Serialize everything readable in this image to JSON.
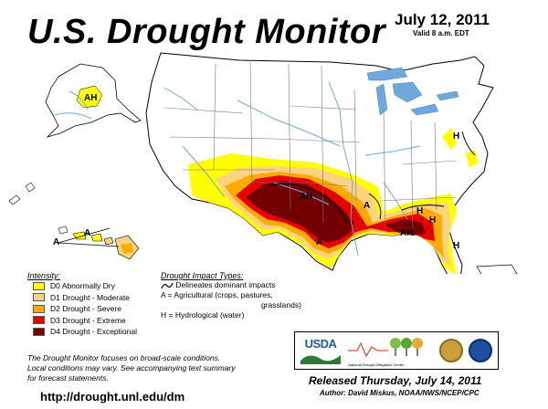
{
  "header": {
    "title": "U.S. Drought Monitor",
    "date": "July 12, 2011",
    "valid": "Valid 8 a.m. EDT"
  },
  "legend": {
    "intensity_title": "Intensity:",
    "items": [
      {
        "label": "D0 Abnormally Dry",
        "color": "#ffff00"
      },
      {
        "label": "D1 Drought - Moderate",
        "color": "#fcd37f"
      },
      {
        "label": "D2 Drought - Severe",
        "color": "#ffaa00"
      },
      {
        "label": "D3 Drought - Extreme",
        "color": "#e60000"
      },
      {
        "label": "D4 Drought - Exceptional",
        "color": "#730000"
      }
    ],
    "impact_title": "Drought Impact Types:",
    "impact_lines": [
      "Delineates dominant impacts",
      "A = Agricultural (crops, pastures,",
      "grasslands)",
      "H = Hydrological (water)"
    ]
  },
  "map": {
    "labels": [
      "AH",
      "A",
      "AH",
      "A",
      "H",
      "H",
      "AH",
      "A",
      "H",
      "H",
      "A"
    ],
    "water_color": "#6fa8dc",
    "state_line_color": "#777777"
  },
  "footer": {
    "note_lines": [
      "The Drought Monitor focuses on broad-scale conditions.",
      "Local conditions may vary. See accompanying text summary",
      "for forecast statements."
    ],
    "url": "http://drought.unl.edu/dm",
    "released": "Released Thursday, July 14, 2011",
    "author": "Author: David Miskus, NOAA/NWS/NCEP/CPC"
  },
  "logos": {
    "usda": "USDA",
    "ndmc": "National Drought Mitigation Center"
  }
}
